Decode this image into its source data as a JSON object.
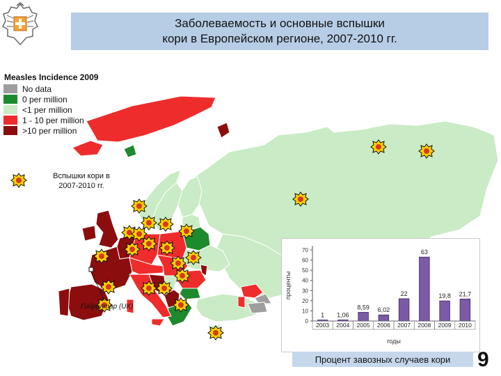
{
  "slide": {
    "title_line1": "Заболеваемость и основные вспышки",
    "title_line2": "кори в Европейском регионе, 2007-2010 гг.",
    "page_number": "9",
    "caption": "Процент завозных случаев кори"
  },
  "map": {
    "legend_title": "Measles Incidence 2009",
    "legend": [
      {
        "label": "No data",
        "color": "#9e9e9e"
      },
      {
        "label": "0 per million",
        "color": "#1e8a2e"
      },
      {
        "label": "<1 per million",
        "color": "#c9ebc5"
      },
      {
        "label": "1 - 10 per million",
        "color": "#ee2c2c"
      },
      {
        "label": ">10 per million",
        "color": "#8b0d0d"
      }
    ],
    "outbreak_legend_label": "Вспышки кори в 2007-2010 гг.",
    "gibraltar_label": "Гибралтар (UK)",
    "sea_color": "#ffffff",
    "border_color": "#ffffff"
  },
  "chart_data": {
    "type": "bar",
    "categories": [
      "2003",
      "2004",
      "2005",
      "2006",
      "2007",
      "2008",
      "2009",
      "2010"
    ],
    "values": [
      1,
      1.06,
      8.59,
      6.02,
      22,
      63,
      19.8,
      21.7
    ],
    "value_labels": [
      "1",
      "1,06",
      "8,59",
      "6,02",
      "22",
      "63",
      "19,8",
      "21,7"
    ],
    "ylabel": "проценты",
    "xlabel": "годы",
    "ylim": [
      0,
      70
    ],
    "yticks": [
      0,
      10,
      20,
      30,
      40,
      50,
      60,
      70
    ],
    "bar_color": "#7b5aa6",
    "bar_edge_color": "#3e2a66",
    "grid": false
  }
}
